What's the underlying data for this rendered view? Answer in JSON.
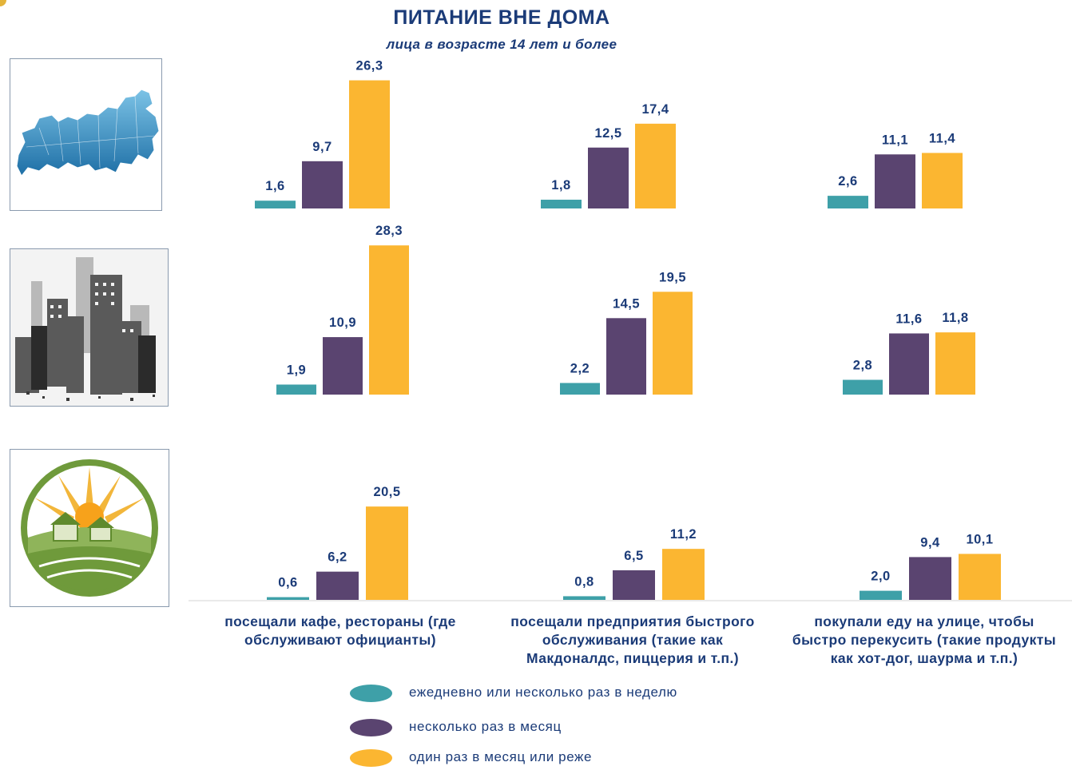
{
  "header": {
    "title": "ПИТАНИЕ ВНЕ ДОМА",
    "subtitle": "лица в возрасте 14 лет и более"
  },
  "icons": {
    "row1": "russia-map-icon",
    "row2": "city-skyline-icon",
    "row3": "village-countryside-icon"
  },
  "categories": [
    "посещали кафе, рестораны (где обслуживают официанты)",
    "посещали предприятия быстрого обслуживания (такие как Макдоналдс, пиццерия и т.п.)",
    "покупали еду на улице, чтобы быстро перекусить (такие продукты как хот-дог, шаурма и т.п.)"
  ],
  "category_lines": [
    [
      "посещали кафе, рестораны (где",
      "обслуживают официанты)"
    ],
    [
      "посещали предприятия быстрого",
      "обслуживания (такие как",
      "Макдоналдс, пиццерия и т.п.)"
    ],
    [
      "покупали еду на улице, чтобы",
      "быстро перекусить (такие продукты",
      "как хот-дог, шаурма и т.п.)"
    ]
  ],
  "legend": [
    {
      "label": "ежедневно или несколько раз в неделю",
      "color": "#3ea0a8"
    },
    {
      "label": "несколько раз в месяц",
      "color": "#5a4470"
    },
    {
      "label": "один раз в месяц или реже",
      "color": "#fbb631"
    }
  ],
  "colors": {
    "text": "#1b3b78",
    "teal": "#3ea0a8",
    "purple": "#5a4470",
    "yellow": "#fbb631"
  },
  "chart_data": [
    {
      "type": "bar",
      "categories": [
        "посещали кафе, рестораны (где обслуживают официанты)",
        "посещали предприятия быстрого обслуживания (такие как Макдоналдс, пиццерия и т.п.)",
        "покупали еду на улице, чтобы быстро перекусить (такие продукты как хот-дог, шаурма и т.п.)"
      ],
      "series": [
        {
          "name": "ежедневно или несколько раз в неделю",
          "values": [
            1.6,
            1.8,
            2.6
          ],
          "labels": [
            "1,6",
            "1,8",
            "2,6"
          ]
        },
        {
          "name": "несколько раз в месяц",
          "values": [
            9.7,
            12.5,
            11.1
          ],
          "labels": [
            "9,7",
            "12,5",
            "11,1"
          ]
        },
        {
          "name": "один раз в месяц или реже",
          "values": [
            26.3,
            17.4,
            11.4
          ],
          "labels": [
            "26,3",
            "17,4",
            "11,4"
          ]
        }
      ]
    },
    {
      "type": "bar",
      "categories": [
        "посещали кафе, рестораны (где обслуживают официанты)",
        "посещали предприятия быстрого обслуживания (такие как Макдоналдс, пиццерия и т.п.)",
        "покупали еду на улице, чтобы быстро перекусить (такие продукты как хот-дог, шаурма и т.п.)"
      ],
      "series": [
        {
          "name": "ежедневно или несколько раз в неделю",
          "values": [
            1.9,
            2.2,
            2.8
          ],
          "labels": [
            "1,9",
            "2,2",
            "2,8"
          ]
        },
        {
          "name": "несколько раз в месяц",
          "values": [
            10.9,
            14.5,
            11.6
          ],
          "labels": [
            "10,9",
            "14,5",
            "11,6"
          ]
        },
        {
          "name": "один раз в месяц или реже",
          "values": [
            28.3,
            19.5,
            11.8
          ],
          "labels": [
            "28,3",
            "19,5",
            "11,8"
          ]
        }
      ]
    },
    {
      "type": "bar",
      "categories": [
        "посещали кафе, рестораны (где обслуживают официанты)",
        "посещали предприятия быстрого обслуживания (такие как Макдоналдс, пиццерия и т.п.)",
        "покупали еду на улице, чтобы быстро перекусить (такие продукты как хот-дог, шаурма и т.п.)"
      ],
      "series": [
        {
          "name": "ежедневно или несколько раз в неделю",
          "values": [
            0.6,
            0.8,
            2.0
          ],
          "labels": [
            "0,6",
            "0,8",
            "2,0"
          ]
        },
        {
          "name": "несколько раз в месяц",
          "values": [
            6.2,
            6.5,
            9.4
          ],
          "labels": [
            "6,2",
            "6,5",
            "9,4"
          ]
        },
        {
          "name": "один раз в месяц или реже",
          "values": [
            20.5,
            11.2,
            10.1
          ],
          "labels": [
            "20,5",
            "11,2",
            "10,1"
          ]
        }
      ]
    }
  ]
}
